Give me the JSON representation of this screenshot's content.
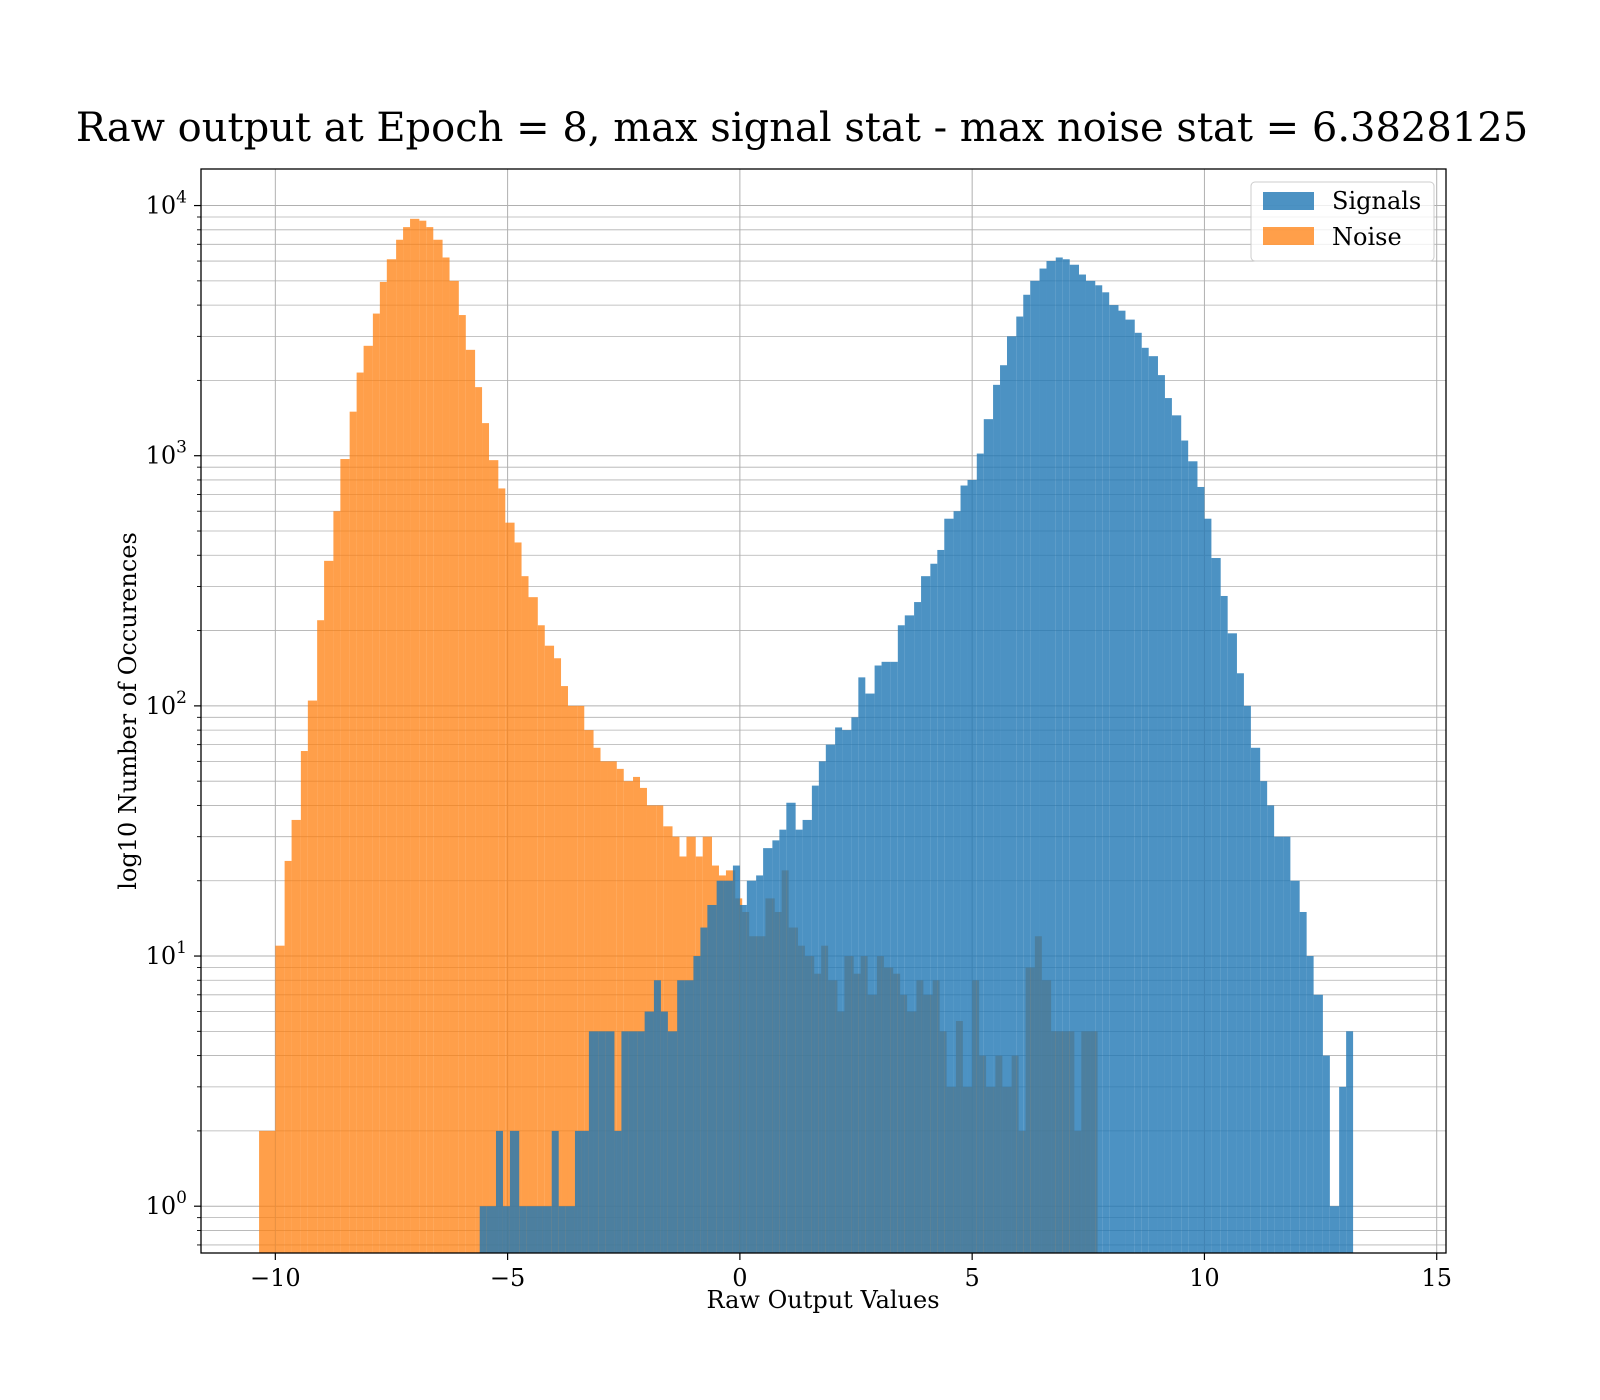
{
  "chart_data": {
    "type": "bar",
    "subtype": "histogram",
    "title": "Raw output at Epoch = 8, max signal stat - max noise stat = 6.3828125",
    "xlabel": "Raw Output Values",
    "ylabel": "log10 Number of Occurences",
    "xlim": [
      -11.6,
      15.2
    ],
    "ylim_log": [
      0.65,
      14000
    ],
    "yscale": "log",
    "grid": true,
    "legend_position": "top-right",
    "x_ticks": [
      -10,
      -5,
      0,
      5,
      10,
      15
    ],
    "x_tick_labels": [
      "−10",
      "−5",
      "0",
      "5",
      "10",
      "15"
    ],
    "y_ticks": [
      1,
      10,
      100,
      1000,
      10000
    ],
    "y_tick_bases": [
      "10",
      "10",
      "10",
      "10",
      "10"
    ],
    "y_tick_exps": [
      "0",
      "1",
      "2",
      "3",
      "4"
    ],
    "series": [
      {
        "name": "Noise",
        "color": "#ff7f0e",
        "opacity": 0.75,
        "bins": [
          [
            -10.35,
            -10.0,
            2
          ],
          [
            -10.0,
            -9.8,
            11
          ],
          [
            -9.8,
            -9.65,
            24
          ],
          [
            -9.65,
            -9.45,
            35
          ],
          [
            -9.45,
            -9.3,
            66
          ],
          [
            -9.3,
            -9.1,
            105
          ],
          [
            -9.1,
            -8.95,
            220
          ],
          [
            -8.95,
            -8.75,
            380
          ],
          [
            -8.75,
            -8.6,
            600
          ],
          [
            -8.6,
            -8.4,
            970
          ],
          [
            -8.4,
            -8.25,
            1500
          ],
          [
            -8.25,
            -8.1,
            2150
          ],
          [
            -8.1,
            -7.9,
            2750
          ],
          [
            -7.9,
            -7.75,
            3700
          ],
          [
            -7.75,
            -7.6,
            4950
          ],
          [
            -7.6,
            -7.4,
            6100
          ],
          [
            -7.4,
            -7.25,
            7300
          ],
          [
            -7.25,
            -7.1,
            8200
          ],
          [
            -7.1,
            -6.9,
            8850
          ],
          [
            -6.9,
            -6.75,
            8700
          ],
          [
            -6.75,
            -6.6,
            8200
          ],
          [
            -6.6,
            -6.4,
            7300
          ],
          [
            -6.4,
            -6.25,
            6200
          ],
          [
            -6.25,
            -6.05,
            5000
          ],
          [
            -6.05,
            -5.9,
            3650
          ],
          [
            -5.9,
            -5.7,
            2650
          ],
          [
            -5.7,
            -5.55,
            1880
          ],
          [
            -5.55,
            -5.4,
            1350
          ],
          [
            -5.4,
            -5.2,
            960
          ],
          [
            -5.2,
            -5.05,
            740
          ],
          [
            -5.05,
            -4.85,
            540
          ],
          [
            -4.85,
            -4.7,
            450
          ],
          [
            -4.7,
            -4.55,
            330
          ],
          [
            -4.55,
            -4.35,
            272
          ],
          [
            -4.35,
            -4.2,
            210
          ],
          [
            -4.2,
            -4.0,
            174
          ],
          [
            -4.0,
            -3.85,
            155
          ],
          [
            -3.85,
            -3.7,
            120
          ],
          [
            -3.7,
            -3.5,
            100
          ],
          [
            -3.5,
            -3.35,
            100
          ],
          [
            -3.35,
            -3.15,
            80
          ],
          [
            -3.15,
            -3.0,
            68
          ],
          [
            -3.0,
            -2.85,
            60
          ],
          [
            -2.85,
            -2.65,
            60
          ],
          [
            -2.65,
            -2.5,
            56
          ],
          [
            -2.5,
            -2.3,
            50
          ],
          [
            -2.3,
            -2.15,
            52
          ],
          [
            -2.15,
            -2.0,
            47
          ],
          [
            -2.0,
            -1.8,
            40
          ],
          [
            -1.8,
            -1.65,
            40
          ],
          [
            -1.65,
            -1.45,
            33
          ],
          [
            -1.45,
            -1.3,
            30
          ],
          [
            -1.3,
            -1.15,
            25
          ],
          [
            -1.15,
            -0.95,
            30
          ],
          [
            -0.95,
            -0.8,
            25
          ],
          [
            -0.8,
            -0.6,
            30
          ],
          [
            -0.6,
            -0.45,
            23
          ],
          [
            -0.45,
            -0.3,
            21
          ],
          [
            -0.3,
            -0.1,
            22
          ],
          [
            -0.1,
            0.05,
            17
          ],
          [
            0.05,
            0.2,
            15
          ],
          [
            0.2,
            0.4,
            12
          ],
          [
            0.4,
            0.55,
            12
          ],
          [
            0.55,
            0.75,
            17
          ],
          [
            0.75,
            0.9,
            15
          ],
          [
            0.9,
            1.05,
            22
          ],
          [
            1.05,
            1.25,
            13
          ],
          [
            1.25,
            1.4,
            11
          ],
          [
            1.4,
            1.6,
            10
          ],
          [
            1.6,
            1.75,
            8.5
          ],
          [
            1.75,
            1.9,
            11
          ],
          [
            1.9,
            2.1,
            8
          ],
          [
            2.1,
            2.25,
            6
          ],
          [
            2.25,
            2.45,
            10
          ],
          [
            2.45,
            2.6,
            8.5
          ],
          [
            2.6,
            2.75,
            10
          ],
          [
            2.75,
            2.95,
            7
          ],
          [
            2.95,
            3.1,
            10
          ],
          [
            3.1,
            3.3,
            9
          ],
          [
            3.3,
            3.45,
            8.5
          ],
          [
            3.45,
            3.6,
            7
          ],
          [
            3.6,
            3.8,
            6
          ],
          [
            3.8,
            3.95,
            8
          ],
          [
            3.95,
            4.15,
            7
          ],
          [
            4.15,
            4.3,
            8
          ],
          [
            4.3,
            4.45,
            5
          ],
          [
            4.45,
            4.65,
            3
          ],
          [
            4.65,
            4.8,
            5.5
          ],
          [
            4.8,
            5.0,
            3
          ],
          [
            5.0,
            5.15,
            8
          ],
          [
            5.15,
            5.3,
            4
          ],
          [
            5.3,
            5.5,
            3
          ],
          [
            5.5,
            5.65,
            4
          ],
          [
            5.65,
            5.85,
            3
          ],
          [
            5.85,
            6.0,
            4
          ],
          [
            6.0,
            6.15,
            2
          ],
          [
            6.15,
            6.35,
            9
          ],
          [
            6.35,
            6.5,
            12
          ],
          [
            6.5,
            6.7,
            8
          ],
          [
            6.7,
            6.85,
            5
          ],
          [
            6.85,
            7.0,
            5
          ],
          [
            7.0,
            7.2,
            5
          ],
          [
            7.2,
            7.35,
            2
          ],
          [
            7.35,
            7.55,
            5
          ],
          [
            7.55,
            7.7,
            5
          ]
        ]
      },
      {
        "name": "Signals",
        "color": "#1f77b4",
        "opacity": 0.8,
        "bins": [
          [
            -5.6,
            -5.45,
            1
          ],
          [
            -5.45,
            -5.25,
            1
          ],
          [
            -5.25,
            -5.1,
            2
          ],
          [
            -5.1,
            -4.95,
            1
          ],
          [
            -4.95,
            -4.75,
            2
          ],
          [
            -4.75,
            -4.6,
            1
          ],
          [
            -4.6,
            -4.4,
            1
          ],
          [
            -4.4,
            -4.25,
            1
          ],
          [
            -4.25,
            -4.05,
            1
          ],
          [
            -4.05,
            -3.9,
            2
          ],
          [
            -3.9,
            -3.75,
            1
          ],
          [
            -3.75,
            -3.55,
            1
          ],
          [
            -3.55,
            -3.4,
            2
          ],
          [
            -3.4,
            -3.25,
            2
          ],
          [
            -3.25,
            -3.05,
            5
          ],
          [
            -3.05,
            -2.9,
            5
          ],
          [
            -2.9,
            -2.7,
            5
          ],
          [
            -2.7,
            -2.55,
            2
          ],
          [
            -2.55,
            -2.4,
            5
          ],
          [
            -2.4,
            -2.2,
            5
          ],
          [
            -2.2,
            -2.05,
            5
          ],
          [
            -2.05,
            -1.85,
            6
          ],
          [
            -1.85,
            -1.7,
            8
          ],
          [
            -1.7,
            -1.55,
            6
          ],
          [
            -1.55,
            -1.35,
            5
          ],
          [
            -1.35,
            -1.2,
            8
          ],
          [
            -1.2,
            -1.0,
            8
          ],
          [
            -1.0,
            -0.85,
            10
          ],
          [
            -0.85,
            -0.7,
            13
          ],
          [
            -0.7,
            -0.5,
            16
          ],
          [
            -0.5,
            -0.35,
            20
          ],
          [
            -0.35,
            -0.15,
            20
          ],
          [
            -0.15,
            0.0,
            23
          ],
          [
            0.0,
            0.15,
            16
          ],
          [
            0.15,
            0.35,
            20
          ],
          [
            0.35,
            0.5,
            21
          ],
          [
            0.5,
            0.7,
            27
          ],
          [
            0.7,
            0.85,
            29
          ],
          [
            0.85,
            1.0,
            32
          ],
          [
            1.0,
            1.2,
            41
          ],
          [
            1.2,
            1.35,
            32
          ],
          [
            1.35,
            1.55,
            35
          ],
          [
            1.55,
            1.7,
            48
          ],
          [
            1.7,
            1.85,
            60
          ],
          [
            1.85,
            2.05,
            70
          ],
          [
            2.05,
            2.2,
            82
          ],
          [
            2.2,
            2.4,
            80
          ],
          [
            2.4,
            2.55,
            90
          ],
          [
            2.55,
            2.7,
            130
          ],
          [
            2.7,
            2.9,
            112
          ],
          [
            2.9,
            3.05,
            145
          ],
          [
            3.05,
            3.25,
            150
          ],
          [
            3.25,
            3.4,
            150
          ],
          [
            3.4,
            3.55,
            210
          ],
          [
            3.55,
            3.75,
            230
          ],
          [
            3.75,
            3.9,
            260
          ],
          [
            3.9,
            4.1,
            330
          ],
          [
            4.1,
            4.25,
            370
          ],
          [
            4.25,
            4.4,
            420
          ],
          [
            4.4,
            4.6,
            560
          ],
          [
            4.6,
            4.75,
            600
          ],
          [
            4.75,
            4.9,
            760
          ],
          [
            4.9,
            5.1,
            800
          ],
          [
            5.1,
            5.25,
            1020
          ],
          [
            5.25,
            5.45,
            1400
          ],
          [
            5.45,
            5.6,
            1920
          ],
          [
            5.6,
            5.75,
            2300
          ],
          [
            5.75,
            5.95,
            3000
          ],
          [
            5.95,
            6.1,
            3600
          ],
          [
            6.1,
            6.25,
            4400
          ],
          [
            6.25,
            6.45,
            5000
          ],
          [
            6.45,
            6.6,
            5600
          ],
          [
            6.6,
            6.8,
            6000
          ],
          [
            6.8,
            6.95,
            6200
          ],
          [
            6.95,
            7.1,
            6100
          ],
          [
            7.1,
            7.3,
            5800
          ],
          [
            7.3,
            7.45,
            5300
          ],
          [
            7.45,
            7.65,
            5000
          ],
          [
            7.65,
            7.8,
            4800
          ],
          [
            7.8,
            7.95,
            4500
          ],
          [
            7.95,
            8.15,
            4000
          ],
          [
            8.15,
            8.3,
            3800
          ],
          [
            8.3,
            8.5,
            3500
          ],
          [
            8.5,
            8.65,
            3100
          ],
          [
            8.65,
            8.8,
            2700
          ],
          [
            8.8,
            9.0,
            2500
          ],
          [
            9.0,
            9.15,
            2100
          ],
          [
            9.15,
            9.3,
            1700
          ],
          [
            9.3,
            9.5,
            1450
          ],
          [
            9.5,
            9.65,
            1150
          ],
          [
            9.65,
            9.85,
            950
          ],
          [
            9.85,
            10.0,
            750
          ],
          [
            10.0,
            10.15,
            560
          ],
          [
            10.15,
            10.35,
            390
          ],
          [
            10.35,
            10.5,
            275
          ],
          [
            10.5,
            10.7,
            195
          ],
          [
            10.7,
            10.85,
            135
          ],
          [
            10.85,
            11.0,
            100
          ],
          [
            11.0,
            11.2,
            68
          ],
          [
            11.2,
            11.35,
            50
          ],
          [
            11.35,
            11.5,
            40
          ],
          [
            11.5,
            11.7,
            30
          ],
          [
            11.7,
            11.85,
            30
          ],
          [
            11.85,
            12.05,
            20
          ],
          [
            12.05,
            12.2,
            15
          ],
          [
            12.2,
            12.35,
            10
          ],
          [
            12.35,
            12.55,
            7
          ],
          [
            12.55,
            12.7,
            4
          ],
          [
            12.7,
            12.9,
            1
          ],
          [
            12.9,
            13.05,
            3
          ],
          [
            13.05,
            13.2,
            5
          ]
        ]
      }
    ],
    "legend_entries": [
      "Signals",
      "Noise"
    ]
  }
}
